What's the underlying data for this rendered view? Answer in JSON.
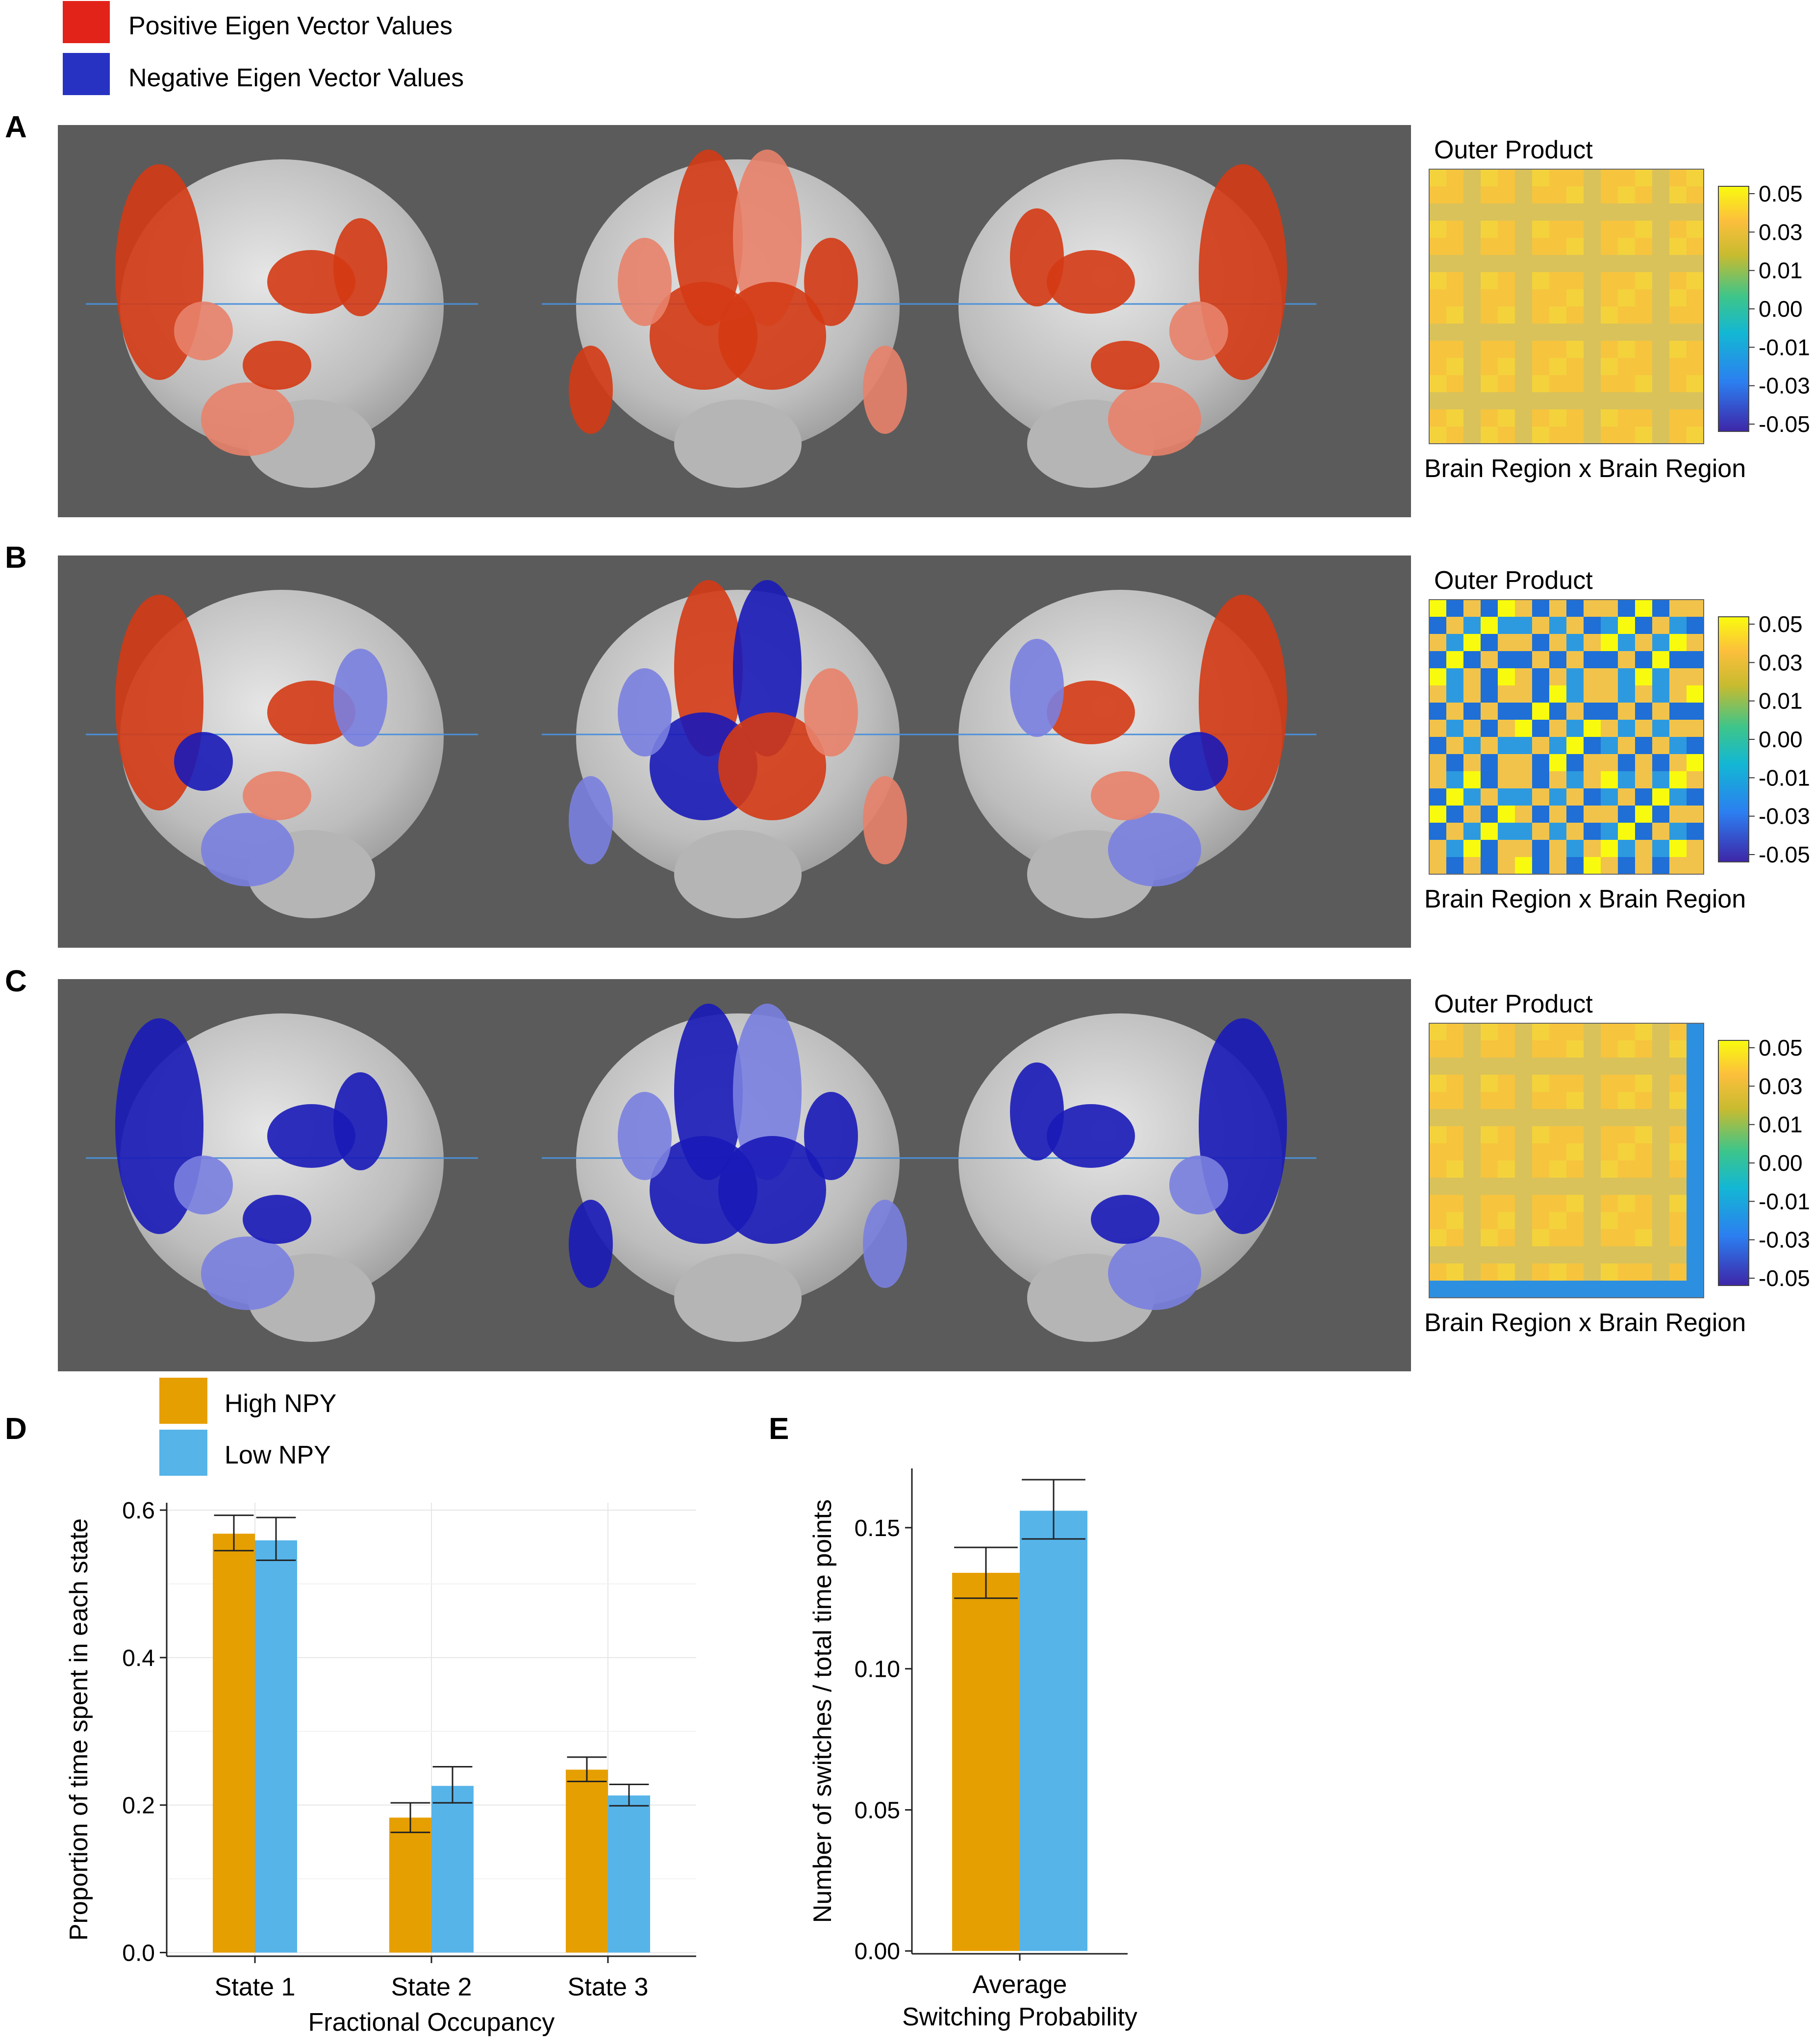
{
  "legend_top": {
    "items": [
      {
        "label": "Positive Eigen Vector Values",
        "color": "#e2231a"
      },
      {
        "label": "Negative Eigen Vector Values",
        "color": "#2832c2"
      }
    ]
  },
  "brain_panels": [
    {
      "letter": "A",
      "mode": "positive",
      "matrix_title": "Outer Product",
      "matrix_xlabel": "Brain Region x Brain Region"
    },
    {
      "letter": "B",
      "mode": "mixed",
      "matrix_title": "Outer Product",
      "matrix_xlabel": "Brain Region x Brain Region"
    },
    {
      "letter": "C",
      "mode": "negative",
      "matrix_title": "Outer Product",
      "matrix_xlabel": "Brain Region x Brain Region"
    }
  ],
  "colorbar_ticks": [
    "0.05",
    "0.03",
    "0.01",
    "0.00",
    "-0.01",
    "-0.03",
    "-0.05"
  ],
  "colors": {
    "high": "#e69f00",
    "low": "#56b4e9",
    "red": "#d43a14",
    "salmon": "#e8826a",
    "blue": "#1a1ab8",
    "lightblue": "#7a7fe0",
    "bg": "#5b5b5b",
    "brain": "#cfcfcf"
  },
  "legend_npy": {
    "items": [
      {
        "label": "High NPY",
        "color": "#e69f00"
      },
      {
        "label": "Low NPY",
        "color": "#56b4e9"
      }
    ]
  },
  "chart_data": [
    {
      "panel": "D",
      "type": "bar",
      "categories": [
        "State 1",
        "State 2",
        "State 3"
      ],
      "series": [
        {
          "name": "High NPY",
          "values": [
            0.568,
            0.183,
            0.248
          ],
          "err_low": [
            0.545,
            0.163,
            0.232
          ],
          "err_high": [
            0.593,
            0.203,
            0.265
          ]
        },
        {
          "name": "Low NPY",
          "values": [
            0.559,
            0.226,
            0.213
          ],
          "err_low": [
            0.532,
            0.203,
            0.199
          ],
          "err_high": [
            0.59,
            0.252,
            0.228
          ]
        }
      ],
      "xlabel": "Fractional Occupancy",
      "ylabel": "Proportion of time spent in each state",
      "ylim": [
        -0.005,
        0.61
      ],
      "yticks": [
        "0.0",
        "0.2",
        "0.4",
        "0.6"
      ],
      "ytick_values": [
        0,
        0.2,
        0.4,
        0.6
      ],
      "grid": true
    },
    {
      "panel": "E",
      "type": "bar",
      "categories": [
        "Average\nSwitching Probability"
      ],
      "category_lines": [
        "Average",
        "Switching Probability"
      ],
      "series": [
        {
          "name": "High NPY",
          "values": [
            0.134
          ],
          "err_low": [
            0.125
          ],
          "err_high": [
            0.143
          ]
        },
        {
          "name": "Low NPY",
          "values": [
            0.156
          ],
          "err_low": [
            0.146
          ],
          "err_high": [
            0.167
          ]
        }
      ],
      "xlabel": "",
      "ylabel": "Number of switches / total time points",
      "ylim": [
        -0.001,
        0.171
      ],
      "yticks": [
        "0.00",
        "0.05",
        "0.10",
        "0.15"
      ],
      "ytick_values": [
        0,
        0.05,
        0.1,
        0.15
      ],
      "grid": false
    }
  ]
}
